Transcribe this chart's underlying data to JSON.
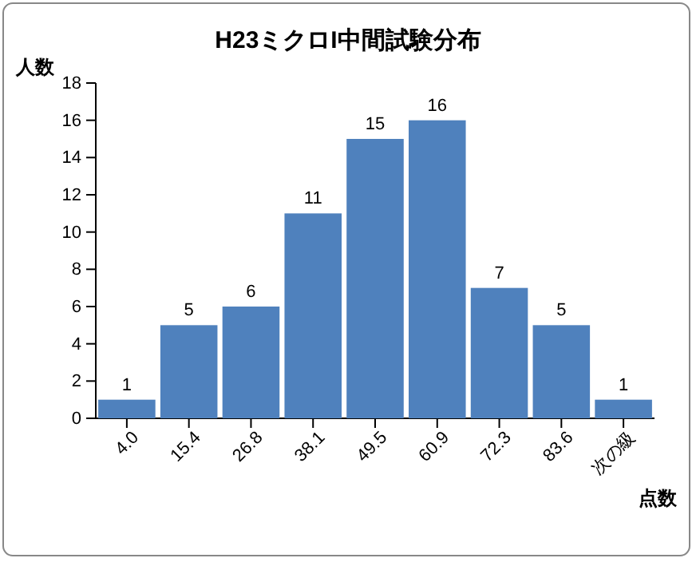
{
  "chart_data": {
    "type": "bar",
    "title": "H23ミクロI中間試験分布",
    "ylabel": "人数",
    "xlabel": "点数",
    "categories": [
      "4.0",
      "15.4",
      "26.8",
      "38.1",
      "49.5",
      "60.9",
      "72.3",
      "83.6",
      "次の級"
    ],
    "values": [
      1,
      5,
      6,
      11,
      15,
      16,
      7,
      5,
      1
    ],
    "color": "#4f81bd",
    "ylim": [
      0,
      18
    ],
    "yticks": [
      0,
      2,
      4,
      6,
      8,
      10,
      12,
      14,
      16,
      18
    ],
    "grid": false,
    "data_labels": true
  }
}
